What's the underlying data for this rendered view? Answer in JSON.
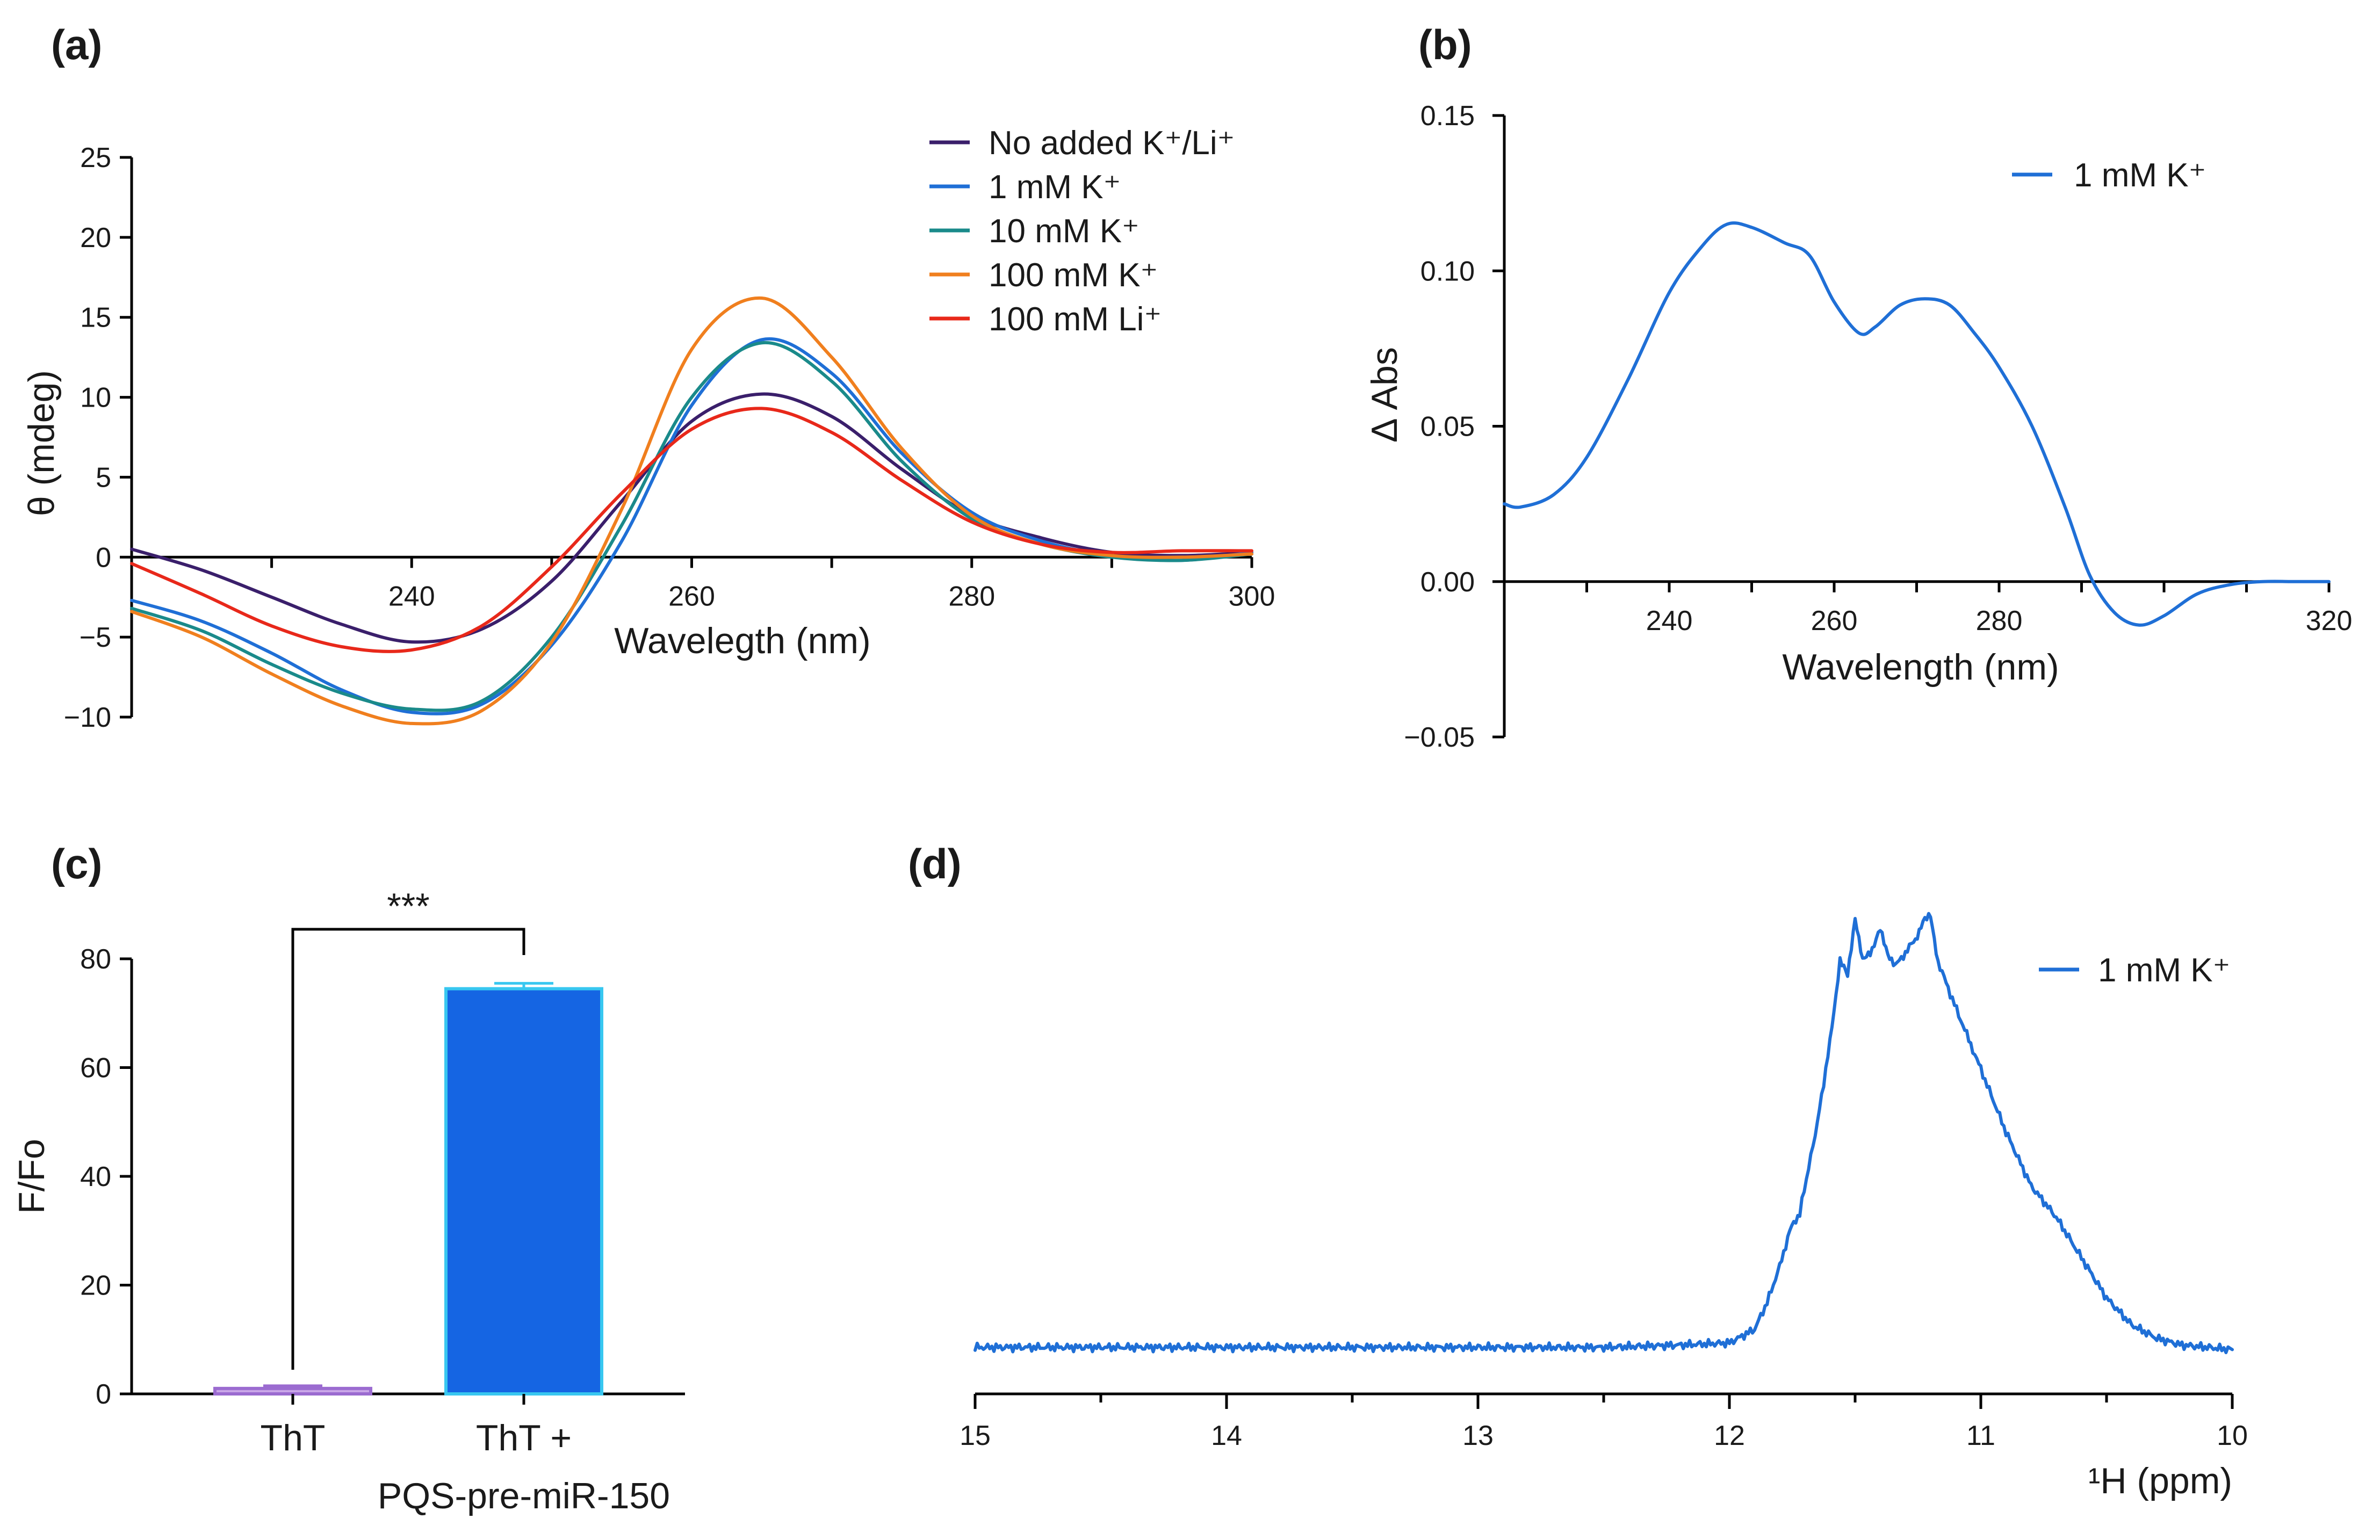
{
  "chart_data": [
    {
      "panel": "(a)",
      "type": "line",
      "title": "",
      "xlabel": "Waveleg​th (nm)",
      "ylabel": "θ (mdeg)",
      "xlim": [
        220,
        300
      ],
      "ylim": [
        -10,
        25
      ],
      "xticks": [
        240,
        260,
        280,
        300
      ],
      "yticks": [
        -10,
        -5,
        0,
        5,
        10,
        15,
        20,
        25
      ],
      "ytick_labels": [
        "−10",
        "−5",
        "0",
        "5",
        "10",
        "15",
        "20",
        "25"
      ],
      "legend_position": "top-right",
      "series": [
        {
          "name": "No added K⁺/Li⁺",
          "color": "#3a1f6b",
          "x": [
            220,
            225,
            230,
            235,
            240,
            245,
            250,
            255,
            260,
            265,
            270,
            275,
            280,
            285,
            290,
            295,
            300
          ],
          "values": [
            0.5,
            -0.8,
            -2.5,
            -4.2,
            -5.3,
            -4.5,
            -1.5,
            3.5,
            8.5,
            10.2,
            8.8,
            5.5,
            2.6,
            1.2,
            0.3,
            0.1,
            0.3
          ]
        },
        {
          "name": "1 mM K⁺",
          "color": "#1f6fd6",
          "x": [
            220,
            225,
            230,
            235,
            240,
            245,
            250,
            255,
            260,
            265,
            270,
            275,
            280,
            285,
            290,
            295,
            300
          ],
          "values": [
            -2.7,
            -4.0,
            -6.0,
            -8.3,
            -9.7,
            -9.2,
            -5.5,
            1.0,
            9.5,
            13.6,
            11.5,
            6.5,
            2.8,
            1.0,
            0.1,
            -0.2,
            0.3
          ]
        },
        {
          "name": "10 mM K⁺",
          "color": "#1a8a8a",
          "x": [
            220,
            225,
            230,
            235,
            240,
            245,
            250,
            255,
            260,
            265,
            270,
            275,
            280,
            285,
            290,
            295,
            300
          ],
          "values": [
            -3.2,
            -4.6,
            -6.7,
            -8.5,
            -9.5,
            -9.0,
            -5.0,
            2.0,
            10.0,
            13.4,
            11.0,
            6.0,
            2.4,
            0.8,
            0.0,
            -0.2,
            0.2
          ]
        },
        {
          "name": "100 mM K⁺",
          "color": "#f07f1e",
          "x": [
            220,
            225,
            230,
            235,
            240,
            245,
            250,
            255,
            260,
            265,
            270,
            275,
            280,
            285,
            290,
            295,
            300
          ],
          "values": [
            -3.4,
            -5.0,
            -7.3,
            -9.3,
            -10.4,
            -9.6,
            -5.3,
            3.0,
            13.0,
            16.2,
            12.5,
            6.8,
            2.6,
            0.8,
            0.1,
            0.0,
            0.2
          ]
        },
        {
          "name": "100 mM Li⁺",
          "color": "#e8281a",
          "x": [
            220,
            225,
            230,
            235,
            240,
            245,
            250,
            255,
            260,
            265,
            270,
            275,
            280,
            285,
            290,
            295,
            300
          ],
          "values": [
            -0.4,
            -2.3,
            -4.3,
            -5.6,
            -5.8,
            -4.3,
            -0.6,
            4.0,
            8.0,
            9.3,
            7.8,
            4.8,
            2.2,
            0.8,
            0.3,
            0.4,
            0.4
          ]
        }
      ]
    },
    {
      "panel": "(b)",
      "type": "line",
      "title": "",
      "xlabel": "Wavelength (nm)",
      "ylabel": "Δ Abs",
      "xlim": [
        220,
        320
      ],
      "ylim": [
        -0.05,
        0.15
      ],
      "xticks": [
        240,
        260,
        280,
        320
      ],
      "yticks": [
        -0.05,
        0,
        0.05,
        0.1,
        0.15
      ],
      "ytick_labels": [
        "−0.05",
        "0.00",
        "0.05",
        "0.10",
        "0.15"
      ],
      "legend_position": "top-right",
      "series": [
        {
          "name": "1 mM K⁺",
          "color": "#1f6fd6",
          "x": [
            220,
            222,
            226,
            230,
            235,
            240,
            244,
            247,
            250,
            254,
            257,
            260,
            263,
            265,
            268,
            271,
            274,
            277,
            280,
            284,
            288,
            291,
            294,
            297,
            300,
            304,
            308,
            312,
            316,
            320
          ],
          "values": [
            0.025,
            0.024,
            0.028,
            0.04,
            0.065,
            0.093,
            0.108,
            0.115,
            0.114,
            0.109,
            0.105,
            0.09,
            0.08,
            0.082,
            0.089,
            0.091,
            0.089,
            0.08,
            0.069,
            0.05,
            0.024,
            0.002,
            -0.01,
            -0.014,
            -0.011,
            -0.004,
            -0.001,
            0.0,
            0.0,
            0.0
          ]
        }
      ]
    },
    {
      "panel": "(c)",
      "type": "bar",
      "title": "",
      "xlabel": "",
      "ylabel": "F/Fo",
      "ylim": [
        0,
        80
      ],
      "yticks": [
        0,
        20,
        40,
        60,
        80
      ],
      "categories": [
        "ThT",
        "ThT + PQS-pre-miR-150"
      ],
      "category_lines": [
        [
          "ThT"
        ],
        [
          "ThT +",
          "PQS-pre-miR-150"
        ]
      ],
      "values": [
        1.0,
        74.5
      ],
      "errors": [
        0.5,
        1.0
      ],
      "colors": [
        "#c9a6e8",
        "#1565e3"
      ],
      "edge_colors": [
        "#9b6bd0",
        "#38c7f0"
      ],
      "significance": "***"
    },
    {
      "panel": "(d)",
      "type": "line",
      "title": "",
      "xlabel": "¹H (ppm)",
      "ylabel": "",
      "xlim": [
        15,
        10
      ],
      "xticks": [
        15,
        14,
        13,
        12,
        11,
        10
      ],
      "legend_position": "top-right",
      "series": [
        {
          "name": "1 mM K⁺",
          "color": "#1f6fd6",
          "x": [
            15.0,
            14.5,
            14.0,
            13.5,
            13.0,
            12.5,
            12.2,
            12.0,
            11.9,
            11.85,
            11.8,
            11.76,
            11.72,
            11.65,
            11.6,
            11.56,
            11.53,
            11.5,
            11.47,
            11.44,
            11.4,
            11.37,
            11.34,
            11.3,
            11.26,
            11.23,
            11.2,
            11.17,
            11.13,
            11.08,
            11.0,
            10.9,
            10.8,
            10.7,
            10.6,
            10.5,
            10.4,
            10.3,
            10.2,
            10.1,
            10.0
          ],
          "values": [
            0.02,
            0.02,
            0.02,
            0.02,
            0.02,
            0.02,
            0.025,
            0.03,
            0.06,
            0.12,
            0.2,
            0.28,
            0.32,
            0.52,
            0.7,
            0.88,
            0.85,
            0.98,
            0.88,
            0.9,
            0.95,
            0.9,
            0.87,
            0.9,
            0.93,
            0.97,
            0.98,
            0.88,
            0.82,
            0.75,
            0.64,
            0.5,
            0.38,
            0.31,
            0.22,
            0.13,
            0.07,
            0.04,
            0.025,
            0.02,
            0.015
          ]
        }
      ]
    }
  ]
}
